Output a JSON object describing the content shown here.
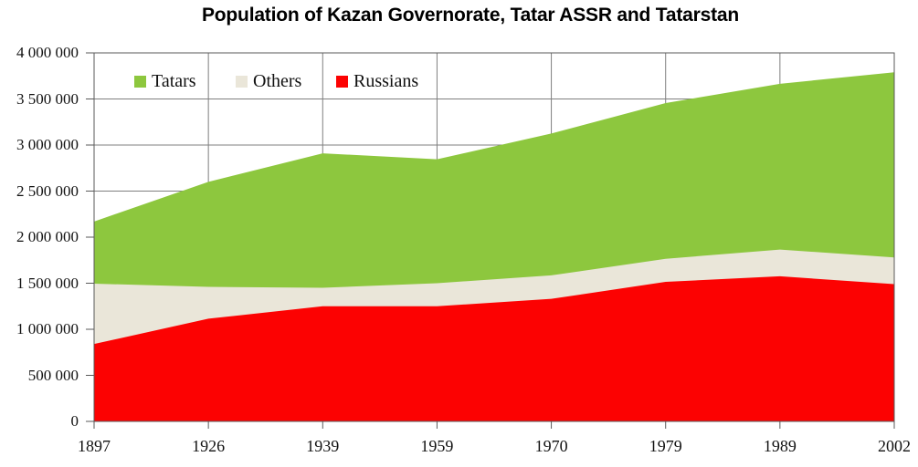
{
  "title": "Population of Kazan Governorate, Tatar ASSR and Tatarstan",
  "legend": {
    "items": [
      {
        "label": "Tatars",
        "color": "#8DC73E"
      },
      {
        "label": "Others",
        "color": "#EAE6D9"
      },
      {
        "label": "Russians",
        "color": "#FC0202"
      }
    ]
  },
  "colors": {
    "background": "#FFFFFF",
    "grid": "#7F7F7F",
    "axis": "#595959",
    "title": "#000000",
    "tick_text": "#111111"
  },
  "chart_data": {
    "type": "area",
    "stacked": true,
    "title": "Population of Kazan Governorate, Tatar ASSR and Tatarstan",
    "categories": [
      "1897",
      "1926",
      "1939",
      "1959",
      "1970",
      "1979",
      "1989",
      "2002"
    ],
    "series": [
      {
        "name": "Russians",
        "color": "#FC0202",
        "values": [
          840000,
          1115000,
          1250000,
          1250000,
          1330000,
          1515000,
          1575000,
          1490000
        ]
      },
      {
        "name": "Others",
        "color": "#EAE6D9",
        "values": [
          655000,
          345000,
          200000,
          250000,
          255000,
          250000,
          290000,
          290000
        ]
      },
      {
        "name": "Tatars",
        "color": "#8DC73E",
        "values": [
          675000,
          1140000,
          1460000,
          1345000,
          1540000,
          1690000,
          1800000,
          2010000
        ]
      }
    ],
    "totals": [
      2170000,
      2600000,
      2910000,
      2845000,
      3125000,
      3455000,
      3665000,
      3790000
    ],
    "xlabel": "",
    "ylabel": "",
    "ylim": [
      0,
      4000000
    ],
    "y_tick_step": 500000,
    "y_tick_labels": [
      "0",
      "500 000",
      "1 000 000",
      "1 500 000",
      "2 000 000",
      "2 500 000",
      "3 000 000",
      "3 500 000",
      "4 000 000"
    ],
    "grid": true,
    "legend_position": "top-inside"
  }
}
